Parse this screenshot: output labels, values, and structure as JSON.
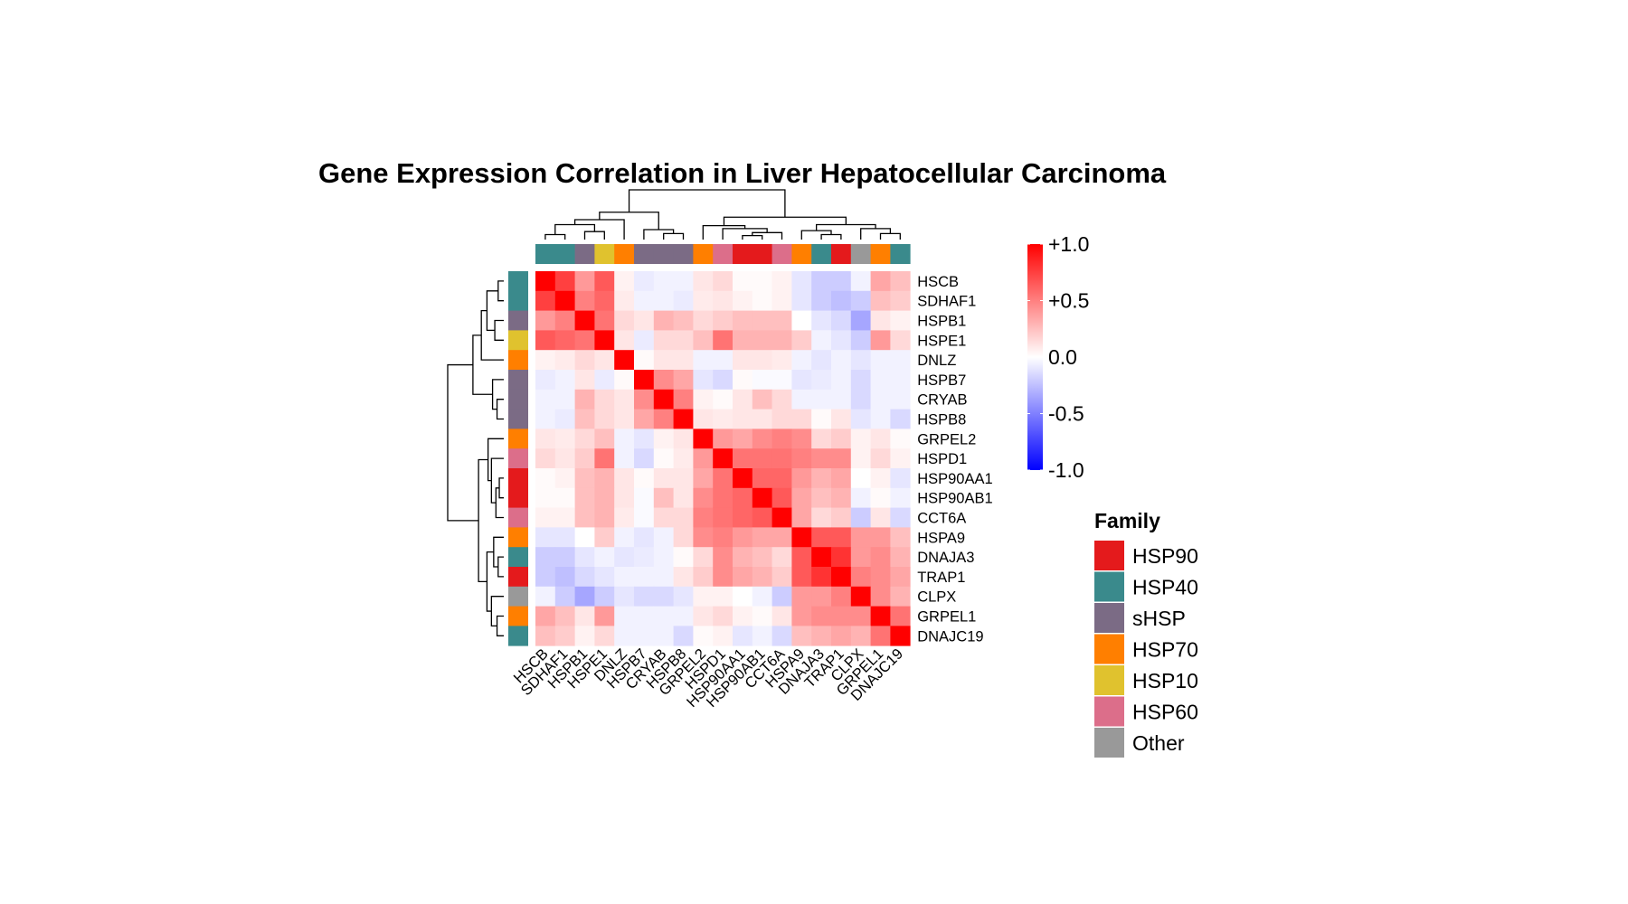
{
  "chart_data": {
    "type": "heatmap",
    "title": "Gene Expression Correlation in Liver Hepatocellular Carcinoma",
    "genes": [
      "HSCB",
      "SDHAF1",
      "HSPB1",
      "HSPE1",
      "DNLZ",
      "HSPB7",
      "CRYAB",
      "HSPB8",
      "GRPEL2",
      "HSPD1",
      "HSP90AA1",
      "HSP90AB1",
      "CCT6A",
      "HSPA9",
      "DNAJA3",
      "TRAP1",
      "CLPX",
      "GRPEL1",
      "DNAJC19"
    ],
    "gene_family": [
      "HSP40",
      "HSP40",
      "sHSP",
      "HSP10",
      "HSP70",
      "sHSP",
      "sHSP",
      "sHSP",
      "HSP70",
      "HSP60",
      "HSP90",
      "HSP90",
      "HSP60",
      "HSP70",
      "HSP40",
      "HSP90",
      "Other",
      "HSP70",
      "HSP40"
    ],
    "values": [
      [
        1.0,
        0.75,
        0.4,
        0.65,
        0.05,
        -0.08,
        -0.05,
        -0.05,
        0.1,
        0.15,
        0.02,
        0.02,
        0.05,
        -0.1,
        -0.2,
        -0.2,
        -0.05,
        0.35,
        0.25
      ],
      [
        0.75,
        1.0,
        0.5,
        0.6,
        0.08,
        -0.05,
        -0.05,
        -0.08,
        0.08,
        0.1,
        0.05,
        0.02,
        0.05,
        -0.1,
        -0.2,
        -0.25,
        -0.2,
        0.25,
        0.2
      ],
      [
        0.4,
        0.5,
        1.0,
        0.55,
        0.15,
        0.1,
        0.3,
        0.25,
        0.15,
        0.2,
        0.25,
        0.25,
        0.25,
        0.0,
        -0.1,
        -0.15,
        -0.35,
        0.1,
        0.05
      ],
      [
        0.65,
        0.6,
        0.55,
        1.0,
        0.1,
        -0.08,
        0.15,
        0.15,
        0.25,
        0.55,
        0.3,
        0.3,
        0.3,
        0.2,
        -0.05,
        -0.1,
        -0.2,
        0.4,
        0.15
      ],
      [
        0.05,
        0.08,
        0.15,
        0.1,
        1.0,
        0.02,
        0.1,
        0.1,
        -0.05,
        -0.05,
        0.1,
        0.1,
        0.08,
        -0.05,
        -0.1,
        -0.05,
        -0.1,
        -0.05,
        -0.05
      ],
      [
        -0.08,
        -0.05,
        0.1,
        -0.08,
        0.02,
        1.0,
        0.45,
        0.35,
        -0.1,
        -0.15,
        0.02,
        -0.02,
        -0.02,
        -0.1,
        -0.08,
        -0.05,
        -0.15,
        -0.05,
        -0.05
      ],
      [
        -0.05,
        -0.05,
        0.3,
        0.15,
        0.1,
        0.45,
        1.0,
        0.5,
        0.05,
        0.02,
        0.1,
        0.25,
        0.15,
        -0.05,
        -0.05,
        -0.05,
        -0.15,
        -0.05,
        -0.05
      ],
      [
        -0.05,
        -0.08,
        0.25,
        0.15,
        0.1,
        0.35,
        0.5,
        1.0,
        0.1,
        0.08,
        0.1,
        0.1,
        0.15,
        0.15,
        0.02,
        0.1,
        -0.1,
        -0.05,
        -0.15
      ],
      [
        0.1,
        0.08,
        0.15,
        0.25,
        -0.05,
        -0.1,
        0.05,
        0.1,
        1.0,
        0.4,
        0.35,
        0.45,
        0.5,
        0.45,
        0.15,
        0.2,
        0.05,
        0.1,
        0.02
      ],
      [
        0.15,
        0.1,
        0.2,
        0.55,
        -0.05,
        -0.15,
        0.02,
        0.08,
        0.4,
        1.0,
        0.55,
        0.55,
        0.55,
        0.5,
        0.45,
        0.45,
        0.05,
        0.15,
        0.05
      ],
      [
        0.02,
        0.05,
        0.25,
        0.3,
        0.1,
        0.02,
        0.1,
        0.1,
        0.35,
        0.55,
        1.0,
        0.6,
        0.6,
        0.4,
        0.3,
        0.35,
        0.0,
        0.05,
        -0.1
      ],
      [
        0.02,
        0.02,
        0.25,
        0.3,
        0.1,
        -0.02,
        0.25,
        0.1,
        0.45,
        0.55,
        0.6,
        1.0,
        0.65,
        0.35,
        0.25,
        0.3,
        -0.05,
        0.02,
        -0.05
      ],
      [
        0.05,
        0.05,
        0.25,
        0.3,
        0.08,
        -0.02,
        0.15,
        0.15,
        0.5,
        0.55,
        0.6,
        0.65,
        1.0,
        0.35,
        0.15,
        0.2,
        -0.2,
        0.1,
        -0.15
      ],
      [
        -0.1,
        -0.1,
        0.0,
        0.2,
        -0.05,
        -0.1,
        -0.05,
        0.15,
        0.45,
        0.5,
        0.4,
        0.35,
        0.35,
        1.0,
        0.65,
        0.65,
        0.4,
        0.4,
        0.25
      ],
      [
        -0.2,
        -0.2,
        -0.1,
        -0.05,
        -0.1,
        -0.08,
        -0.05,
        0.02,
        0.15,
        0.45,
        0.3,
        0.25,
        0.15,
        0.65,
        1.0,
        0.8,
        0.4,
        0.45,
        0.3
      ],
      [
        -0.2,
        -0.25,
        -0.15,
        -0.1,
        -0.05,
        -0.05,
        -0.05,
        0.1,
        0.2,
        0.45,
        0.35,
        0.3,
        0.2,
        0.65,
        0.8,
        1.0,
        0.5,
        0.45,
        0.35
      ],
      [
        -0.05,
        -0.2,
        -0.35,
        -0.2,
        -0.1,
        -0.15,
        -0.15,
        -0.1,
        0.05,
        0.05,
        0.0,
        -0.05,
        -0.2,
        0.4,
        0.4,
        0.5,
        1.0,
        0.45,
        0.3
      ],
      [
        0.35,
        0.25,
        0.1,
        0.4,
        -0.05,
        -0.05,
        -0.05,
        -0.05,
        0.1,
        0.15,
        0.05,
        0.02,
        0.1,
        0.4,
        0.45,
        0.45,
        0.45,
        1.0,
        0.55
      ],
      [
        0.25,
        0.2,
        0.05,
        0.15,
        -0.05,
        -0.05,
        -0.05,
        -0.15,
        0.02,
        0.05,
        -0.1,
        -0.05,
        -0.15,
        0.25,
        0.3,
        0.35,
        0.3,
        0.55,
        1.0
      ]
    ],
    "color_scale": {
      "min": -1.0,
      "max": 1.0,
      "low_color": "#0000ff",
      "mid_color": "#ffffff",
      "high_color": "#ff0000",
      "ticks": [
        "+1.0",
        "+0.5",
        "0.0",
        "-0.5",
        "-1.0"
      ]
    },
    "legend": {
      "title": "Family",
      "placement": "right",
      "items": [
        {
          "name": "HSP90",
          "color": "#e41a1c"
        },
        {
          "name": "HSP40",
          "color": "#3a8a8c"
        },
        {
          "name": "sHSP",
          "color": "#7b6b85"
        },
        {
          "name": "HSP70",
          "color": "#ff7f00"
        },
        {
          "name": "HSP10",
          "color": "#e0c22e"
        },
        {
          "name": "HSP60",
          "color": "#dc6e8a"
        },
        {
          "name": "Other",
          "color": "#999999"
        }
      ]
    }
  }
}
